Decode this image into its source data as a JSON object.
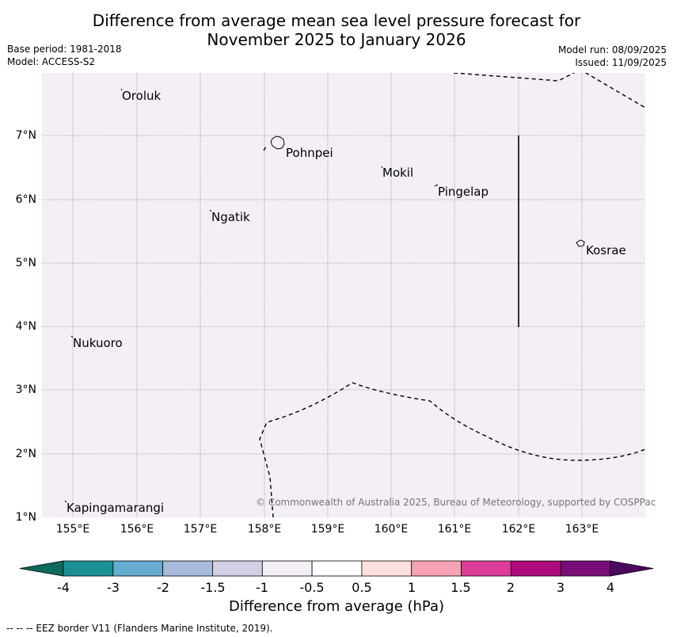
{
  "title": {
    "line1": "Difference from average mean sea level pressure forecast for",
    "line2": "November 2025 to January 2026"
  },
  "meta": {
    "base_period": "Base period: 1981-2018",
    "model": "Model: ACCESS-S2",
    "model_run": "Model run: 08/09/2025",
    "issued": "Issued: 11/09/2025"
  },
  "map": {
    "background_color": "#f4eef6",
    "x_ticks": [
      "155°E",
      "156°E",
      "157°E",
      "158°E",
      "159°E",
      "160°E",
      "161°E",
      "162°E",
      "163°E"
    ],
    "y_ticks": [
      "7°N",
      "6°N",
      "5°N",
      "4°N",
      "3°N",
      "2°N",
      "1°N"
    ],
    "places": {
      "oroluk": "Oroluk",
      "pohnpei": "Pohnpei",
      "mokil": "Mokil",
      "pingelap": "Pingelap",
      "ngatik": "Ngatik",
      "kosrae": "Kosrae",
      "nukuoro": "Nukuoro",
      "kapingamarangi": "Kapingamarangi"
    },
    "copyright": "© Commonwealth of Australia 2025, Bureau of Meteorology, supported by COSPPac"
  },
  "colorbar": {
    "title": "Difference from average (hPa)",
    "labels": [
      "-4",
      "-3",
      "-2",
      "-1.5",
      "-1",
      "-0.5",
      "0.5",
      "1",
      "1.5",
      "2",
      "3",
      "4"
    ],
    "colors": [
      "#1a9096",
      "#67abd0",
      "#a8bbdb",
      "#d3d0e5",
      "#f4eef6",
      "#ffffff",
      "#fde0e0",
      "#f7a3b6",
      "#db3d99",
      "#ae0a7b",
      "#7a0c77"
    ],
    "under_color": "#0c6b5e",
    "over_color": "#4b0a5e"
  },
  "footer": "--  --  -- EEZ border V11 (Flanders Marine Institute, 2019)."
}
